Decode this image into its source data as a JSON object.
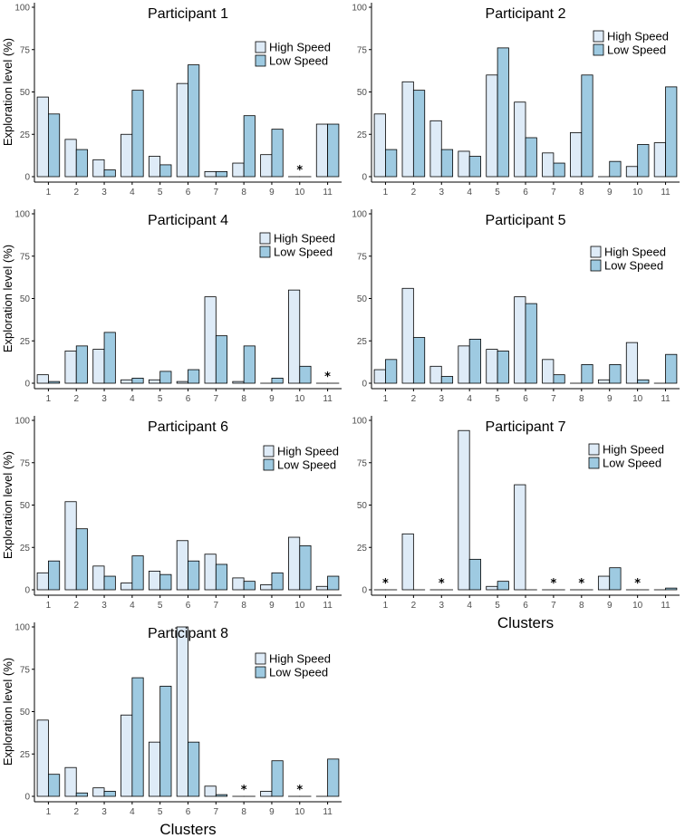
{
  "colors": {
    "high_speed": "#deebf7",
    "low_speed": "#9ecae1",
    "outline": "#000000"
  },
  "chart_data": [
    {
      "type": "bar",
      "title": "Participant 1",
      "xlabel": "",
      "ylabel": "Exploration level (%)",
      "ylim": [
        0,
        100
      ],
      "yticks": [
        0,
        25,
        50,
        75,
        100
      ],
      "categories": [
        "1",
        "2",
        "3",
        "4",
        "5",
        "6",
        "7",
        "8",
        "9",
        "10",
        "11"
      ],
      "series": [
        {
          "name": "High Speed",
          "values": [
            47,
            22,
            10,
            25,
            12,
            55,
            3,
            8,
            13,
            0,
            31
          ]
        },
        {
          "name": "Low Speed",
          "values": [
            37,
            16,
            4,
            51,
            7,
            66,
            3,
            36,
            28,
            0,
            31
          ]
        }
      ],
      "annotations": [
        {
          "category": "10",
          "text": "*"
        }
      ],
      "legend_position": "top-right"
    },
    {
      "type": "bar",
      "title": "Participant 2",
      "xlabel": "",
      "ylabel": "",
      "ylim": [
        0,
        100
      ],
      "yticks": [
        0,
        25,
        50,
        75,
        100
      ],
      "categories": [
        "1",
        "2",
        "3",
        "4",
        "5",
        "6",
        "7",
        "8",
        "9",
        "10",
        "11"
      ],
      "series": [
        {
          "name": "High Speed",
          "values": [
            37,
            56,
            33,
            15,
            60,
            44,
            14,
            26,
            0,
            6,
            20
          ]
        },
        {
          "name": "Low Speed",
          "values": [
            16,
            51,
            16,
            12,
            76,
            23,
            8,
            60,
            9,
            19,
            53
          ]
        }
      ],
      "annotations": [],
      "legend_position": "top-right"
    },
    {
      "type": "bar",
      "title": "Participant 4",
      "xlabel": "",
      "ylabel": "Exploration level (%)",
      "ylim": [
        0,
        100
      ],
      "yticks": [
        0,
        25,
        50,
        75,
        100
      ],
      "categories": [
        "1",
        "2",
        "3",
        "4",
        "5",
        "6",
        "7",
        "8",
        "9",
        "10",
        "11"
      ],
      "series": [
        {
          "name": "High Speed",
          "values": [
            5,
            19,
            20,
            2,
            2,
            1,
            51,
            1,
            0,
            55,
            0
          ]
        },
        {
          "name": "Low Speed",
          "values": [
            1,
            22,
            30,
            3,
            7,
            8,
            28,
            22,
            3,
            10,
            0
          ]
        }
      ],
      "annotations": [
        {
          "category": "11",
          "text": "*"
        }
      ],
      "legend_position": "top-right"
    },
    {
      "type": "bar",
      "title": "Participant 5",
      "xlabel": "",
      "ylabel": "",
      "ylim": [
        0,
        100
      ],
      "yticks": [
        0,
        25,
        50,
        75,
        100
      ],
      "categories": [
        "1",
        "2",
        "3",
        "4",
        "5",
        "6",
        "7",
        "8",
        "9",
        "10",
        "11"
      ],
      "series": [
        {
          "name": "High Speed",
          "values": [
            8,
            56,
            10,
            22,
            20,
            51,
            14,
            0,
            2,
            24,
            0
          ]
        },
        {
          "name": "Low Speed",
          "values": [
            14,
            27,
            4,
            26,
            19,
            47,
            5,
            11,
            11,
            2,
            17
          ]
        }
      ],
      "annotations": [],
      "legend_position": "top-right"
    },
    {
      "type": "bar",
      "title": "Participant 6",
      "xlabel": "",
      "ylabel": "Exploration level (%)",
      "ylim": [
        0,
        100
      ],
      "yticks": [
        0,
        25,
        50,
        75,
        100
      ],
      "categories": [
        "1",
        "2",
        "3",
        "4",
        "5",
        "6",
        "7",
        "8",
        "9",
        "10",
        "11"
      ],
      "series": [
        {
          "name": "High Speed",
          "values": [
            10,
            52,
            14,
            4,
            11,
            29,
            21,
            7,
            3,
            31,
            2
          ]
        },
        {
          "name": "Low Speed",
          "values": [
            17,
            36,
            8,
            20,
            9,
            17,
            15,
            5,
            10,
            26,
            8
          ]
        }
      ],
      "annotations": [],
      "legend_position": "top-right"
    },
    {
      "type": "bar",
      "title": "Participant 7",
      "xlabel": "Clusters",
      "ylabel": "",
      "ylim": [
        0,
        100
      ],
      "yticks": [
        0,
        25,
        50,
        75,
        100
      ],
      "categories": [
        "1",
        "2",
        "3",
        "4",
        "5",
        "6",
        "7",
        "8",
        "9",
        "10",
        "11"
      ],
      "series": [
        {
          "name": "High Speed",
          "values": [
            0,
            33,
            0,
            94,
            2,
            62,
            0,
            0,
            8,
            0,
            0
          ]
        },
        {
          "name": "Low Speed",
          "values": [
            0,
            0,
            0,
            18,
            5,
            0,
            0,
            0,
            13,
            0,
            1
          ]
        }
      ],
      "annotations": [
        {
          "category": "1",
          "text": "*"
        },
        {
          "category": "3",
          "text": "*"
        },
        {
          "category": "7",
          "text": "*"
        },
        {
          "category": "8",
          "text": "*"
        },
        {
          "category": "10",
          "text": "*"
        }
      ],
      "legend_position": "top-right"
    },
    {
      "type": "bar",
      "title": "Participant 8",
      "xlabel": "Clusters",
      "ylabel": "Exploration level (%)",
      "ylim": [
        0,
        100
      ],
      "yticks": [
        0,
        25,
        50,
        75,
        100
      ],
      "categories": [
        "1",
        "2",
        "3",
        "4",
        "5",
        "6",
        "7",
        "8",
        "9",
        "10",
        "11"
      ],
      "series": [
        {
          "name": "High Speed",
          "values": [
            45,
            17,
            5,
            48,
            32,
            100,
            6,
            0,
            3,
            0,
            0
          ]
        },
        {
          "name": "Low Speed",
          "values": [
            13,
            2,
            3,
            70,
            65,
            32,
            1,
            0,
            21,
            0,
            22
          ]
        }
      ],
      "annotations": [
        {
          "category": "8",
          "text": "*"
        },
        {
          "category": "10",
          "text": "*"
        }
      ],
      "legend_position": "top-right"
    }
  ]
}
